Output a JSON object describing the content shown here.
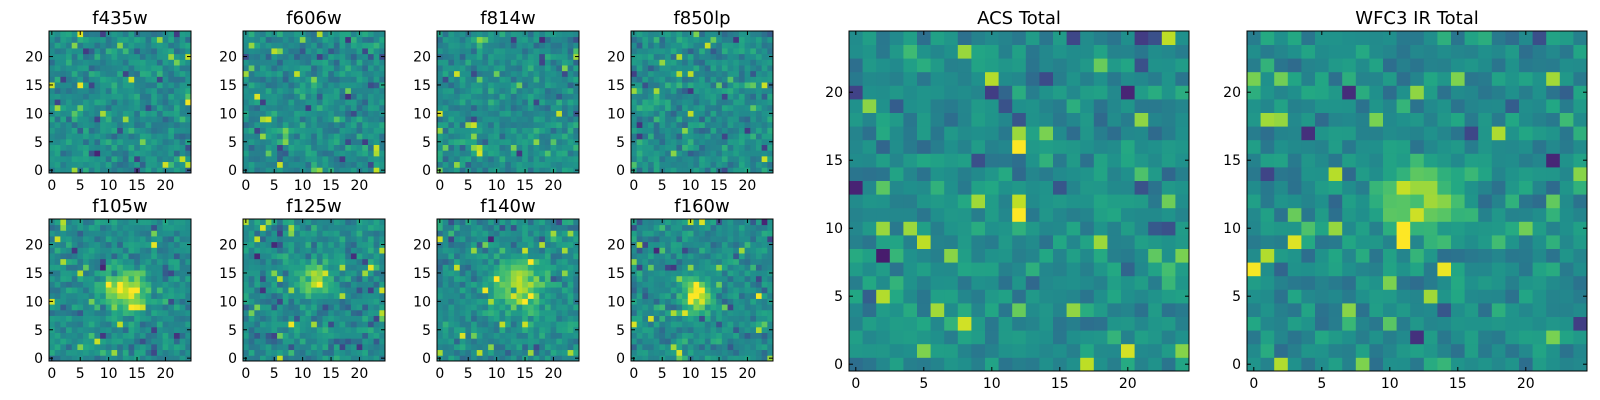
{
  "chart_data": [
    {
      "type": "heatmap",
      "title": "f435w",
      "xticks": [
        0,
        5,
        10,
        15,
        20
      ],
      "yticks": [
        0,
        5,
        10,
        15,
        20
      ],
      "grid_size": [
        25,
        25
      ],
      "colormap": "viridis",
      "seed": 11,
      "source_blob": null
    },
    {
      "type": "heatmap",
      "title": "f606w",
      "xticks": [
        0,
        5,
        10,
        15,
        20
      ],
      "yticks": [
        0,
        5,
        10,
        15,
        20
      ],
      "grid_size": [
        25,
        25
      ],
      "colormap": "viridis",
      "seed": 23,
      "source_blob": null
    },
    {
      "type": "heatmap",
      "title": "f814w",
      "xticks": [
        0,
        5,
        10,
        15,
        20
      ],
      "yticks": [
        0,
        5,
        10,
        15,
        20
      ],
      "grid_size": [
        25,
        25
      ],
      "colormap": "viridis",
      "seed": 37,
      "source_blob": null
    },
    {
      "type": "heatmap",
      "title": "f850lp",
      "xticks": [
        0,
        5,
        10,
        15,
        20
      ],
      "yticks": [
        0,
        5,
        10,
        15,
        20
      ],
      "grid_size": [
        25,
        25
      ],
      "colormap": "viridis",
      "seed": 41,
      "source_blob": null
    },
    {
      "type": "heatmap",
      "title": "f105w",
      "xticks": [
        0,
        5,
        10,
        15,
        20
      ],
      "yticks": [
        0,
        5,
        10,
        15,
        20
      ],
      "grid_size": [
        25,
        25
      ],
      "colormap": "viridis",
      "seed": 53,
      "source_blob": {
        "x": 13,
        "y": 12,
        "sigma": 2.5,
        "amp": 0.45
      }
    },
    {
      "type": "heatmap",
      "title": "f125w",
      "xticks": [
        0,
        5,
        10,
        15,
        20
      ],
      "yticks": [
        0,
        5,
        10,
        15,
        20
      ],
      "grid_size": [
        25,
        25
      ],
      "colormap": "viridis",
      "seed": 67,
      "source_blob": {
        "x": 12,
        "y": 14,
        "sigma": 2.0,
        "amp": 0.35
      }
    },
    {
      "type": "heatmap",
      "title": "f140w",
      "xticks": [
        0,
        5,
        10,
        15,
        20
      ],
      "yticks": [
        0,
        5,
        10,
        15,
        20
      ],
      "grid_size": [
        25,
        25
      ],
      "colormap": "viridis",
      "seed": 79,
      "source_blob": {
        "x": 14,
        "y": 13,
        "sigma": 3.0,
        "amp": 0.4
      }
    },
    {
      "type": "heatmap",
      "title": "f160w",
      "xticks": [
        0,
        5,
        10,
        15,
        20
      ],
      "yticks": [
        0,
        5,
        10,
        15,
        20
      ],
      "grid_size": [
        25,
        25
      ],
      "colormap": "viridis",
      "seed": 83,
      "source_blob": {
        "x": 11,
        "y": 11,
        "sigma": 1.6,
        "amp": 0.55
      }
    },
    {
      "type": "heatmap",
      "title": "ACS Total",
      "xticks": [
        0,
        5,
        10,
        15,
        20
      ],
      "yticks": [
        0,
        5,
        10,
        15,
        20
      ],
      "grid_size": [
        25,
        25
      ],
      "colormap": "viridis",
      "seed": 97,
      "source_blob": null,
      "hot_pixels": [
        [
          12,
          16,
          1.0
        ],
        [
          12,
          17,
          0.85
        ],
        [
          12,
          11,
          1.0
        ],
        [
          12,
          12,
          0.9
        ],
        [
          4,
          10,
          0.85
        ],
        [
          5,
          9,
          0.9
        ],
        [
          14,
          17,
          0.8
        ],
        [
          23,
          24,
          0.9
        ],
        [
          22,
          8,
          0.75
        ],
        [
          23,
          7,
          0.7
        ]
      ]
    },
    {
      "type": "heatmap",
      "title": "WFC3 IR Total",
      "xticks": [
        0,
        5,
        10,
        15,
        20
      ],
      "yticks": [
        0,
        5,
        10,
        15,
        20
      ],
      "grid_size": [
        25,
        25
      ],
      "colormap": "viridis",
      "seed": 101,
      "source_blob": {
        "x": 12,
        "y": 12,
        "sigma": 2.0,
        "amp": 0.38
      },
      "hot_pixels": [
        [
          11,
          9,
          1.0
        ],
        [
          11,
          10,
          1.0
        ],
        [
          12,
          13,
          0.85
        ],
        [
          13,
          13,
          0.85
        ],
        [
          12,
          12,
          0.7
        ]
      ]
    }
  ]
}
